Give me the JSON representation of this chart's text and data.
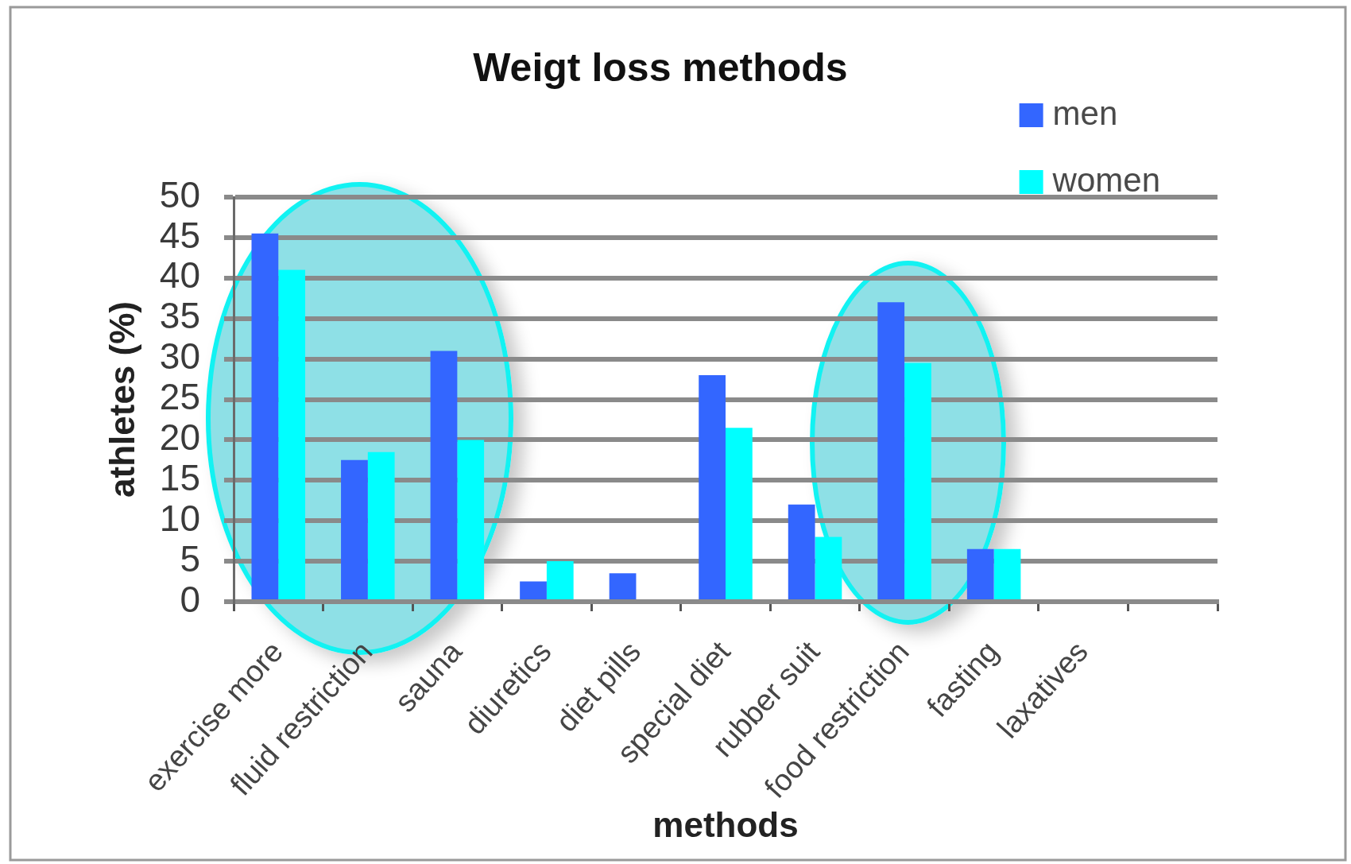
{
  "chart_data": {
    "type": "bar",
    "title": "Weigt loss methods",
    "xlabel": "methods",
    "ylabel": "athletes (%)",
    "categories": [
      "exercise more",
      "fluid restriction",
      "sauna",
      "diuretics",
      "diet pills",
      "special diet",
      "rubber suit",
      "food restriction",
      "fasting",
      "laxatives",
      null
    ],
    "series": [
      {
        "name": "men",
        "color": "#3366ff",
        "values": [
          45.5,
          17.5,
          31,
          2.5,
          3.5,
          28,
          12,
          37,
          6.5,
          0,
          null
        ]
      },
      {
        "name": "women",
        "color": "#00ffff",
        "values": [
          41,
          18.5,
          20,
          5,
          0,
          21.5,
          8,
          29.5,
          6.5,
          0,
          null
        ]
      }
    ],
    "ylim": [
      0,
      50
    ],
    "yticks": [
      0,
      5,
      10,
      15,
      20,
      25,
      30,
      35,
      40,
      45,
      50
    ],
    "grid": "y",
    "legend": "top right"
  }
}
